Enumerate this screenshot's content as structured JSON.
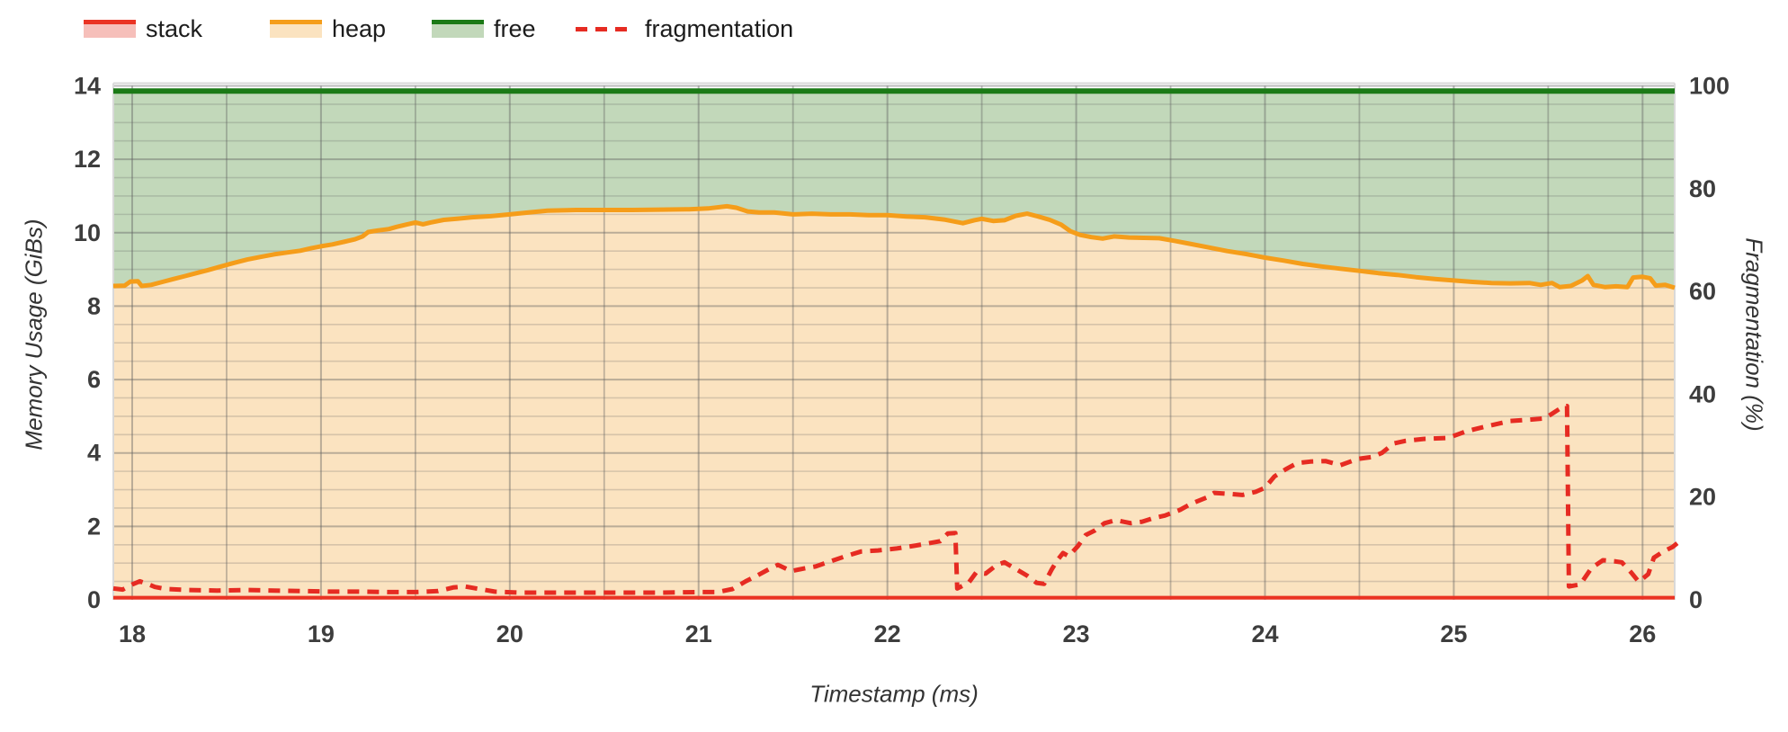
{
  "legend": {
    "items": [
      {
        "label": "stack",
        "series": "stack"
      },
      {
        "label": "heap",
        "series": "heap"
      },
      {
        "label": "free",
        "series": "free"
      },
      {
        "label": "fragmentation",
        "series": "fragmentation"
      }
    ]
  },
  "axes": {
    "x": {
      "title": "Timestamp (ms)",
      "ticks": [
        18,
        19,
        20,
        21,
        22,
        23,
        24,
        25,
        26
      ],
      "min": 17.9,
      "max": 26.17
    },
    "y_left": {
      "title": "Memory Usage (GiBs)",
      "ticks": [
        0,
        2,
        4,
        6,
        8,
        10,
        12,
        14
      ],
      "min": 0,
      "max": 14
    },
    "y_right": {
      "title": "Fragmentation (%)",
      "ticks": [
        0,
        20,
        40,
        60,
        80,
        100
      ],
      "min": 0,
      "max": 100
    }
  },
  "colors": {
    "background": "#ffffff",
    "stack_line": "#ea3323",
    "stack_fill": "#f6bfba",
    "heap_line": "#f59d1a",
    "heap_fill": "#fbe3c0",
    "free_line": "#1b7a16",
    "free_fill": "#c2d8ba",
    "fragmentation_line": "#e62b22",
    "grid_major": "rgba(95,95,95,0.42)",
    "grid_minor": "rgba(95,95,95,0.24)",
    "grid_vertical": "rgba(95,95,95,0.38)",
    "plot_border": "#d9d9d9",
    "tick_text": "#3d3d3d"
  },
  "chart_data": {
    "type": "area",
    "title": "",
    "xlabel": "Timestamp (ms)",
    "ylabel_left": "Memory Usage (GiBs)",
    "ylabel_right": "Fragmentation (%)",
    "x_range": [
      17.9,
      26.17
    ],
    "ylim_left": [
      0,
      14
    ],
    "ylim_right": [
      0,
      100
    ],
    "grid": {
      "x_minor_step": 0.5,
      "y_left_minor_step": 0.5,
      "grid_on": true,
      "legend_position": "top-left"
    },
    "series": [
      {
        "name": "free",
        "axis": "left",
        "style": "area",
        "width": 6,
        "points": [
          [
            17.9,
            13.86
          ],
          [
            26.17,
            13.86
          ]
        ]
      },
      {
        "name": "heap",
        "axis": "left",
        "style": "area",
        "width": 5,
        "points": [
          [
            17.9,
            8.55
          ],
          [
            17.96,
            8.56
          ],
          [
            17.99,
            8.67
          ],
          [
            18.03,
            8.68
          ],
          [
            18.05,
            8.55
          ],
          [
            18.1,
            8.58
          ],
          [
            18.16,
            8.66
          ],
          [
            18.22,
            8.74
          ],
          [
            18.28,
            8.82
          ],
          [
            18.34,
            8.9
          ],
          [
            18.4,
            8.98
          ],
          [
            18.47,
            9.08
          ],
          [
            18.54,
            9.18
          ],
          [
            18.61,
            9.27
          ],
          [
            18.68,
            9.34
          ],
          [
            18.75,
            9.41
          ],
          [
            18.82,
            9.46
          ],
          [
            18.89,
            9.51
          ],
          [
            18.95,
            9.58
          ],
          [
            19.0,
            9.63
          ],
          [
            19.06,
            9.68
          ],
          [
            19.12,
            9.75
          ],
          [
            19.18,
            9.82
          ],
          [
            19.22,
            9.9
          ],
          [
            19.25,
            10.02
          ],
          [
            19.3,
            10.06
          ],
          [
            19.36,
            10.1
          ],
          [
            19.4,
            10.16
          ],
          [
            19.45,
            10.22
          ],
          [
            19.5,
            10.28
          ],
          [
            19.54,
            10.23
          ],
          [
            19.58,
            10.28
          ],
          [
            19.65,
            10.35
          ],
          [
            19.72,
            10.38
          ],
          [
            19.8,
            10.42
          ],
          [
            19.9,
            10.45
          ],
          [
            20.0,
            10.5
          ],
          [
            20.1,
            10.55
          ],
          [
            20.2,
            10.6
          ],
          [
            20.35,
            10.62
          ],
          [
            20.5,
            10.62
          ],
          [
            20.65,
            10.62
          ],
          [
            20.8,
            10.63
          ],
          [
            20.95,
            10.64
          ],
          [
            21.05,
            10.66
          ],
          [
            21.15,
            10.72
          ],
          [
            21.2,
            10.68
          ],
          [
            21.26,
            10.58
          ],
          [
            21.32,
            10.55
          ],
          [
            21.4,
            10.55
          ],
          [
            21.5,
            10.5
          ],
          [
            21.6,
            10.52
          ],
          [
            21.7,
            10.5
          ],
          [
            21.8,
            10.5
          ],
          [
            21.9,
            10.48
          ],
          [
            22.0,
            10.48
          ],
          [
            22.1,
            10.44
          ],
          [
            22.2,
            10.42
          ],
          [
            22.3,
            10.36
          ],
          [
            22.4,
            10.26
          ],
          [
            22.46,
            10.34
          ],
          [
            22.5,
            10.38
          ],
          [
            22.56,
            10.32
          ],
          [
            22.62,
            10.34
          ],
          [
            22.68,
            10.46
          ],
          [
            22.74,
            10.52
          ],
          [
            22.8,
            10.44
          ],
          [
            22.86,
            10.35
          ],
          [
            22.92,
            10.22
          ],
          [
            22.97,
            10.04
          ],
          [
            23.02,
            9.94
          ],
          [
            23.08,
            9.88
          ],
          [
            23.14,
            9.84
          ],
          [
            23.2,
            9.9
          ],
          [
            23.28,
            9.87
          ],
          [
            23.36,
            9.86
          ],
          [
            23.44,
            9.85
          ],
          [
            23.52,
            9.78
          ],
          [
            23.6,
            9.7
          ],
          [
            23.7,
            9.6
          ],
          [
            23.8,
            9.5
          ],
          [
            23.9,
            9.42
          ],
          [
            24.0,
            9.32
          ],
          [
            24.1,
            9.24
          ],
          [
            24.2,
            9.15
          ],
          [
            24.3,
            9.08
          ],
          [
            24.4,
            9.02
          ],
          [
            24.5,
            8.96
          ],
          [
            24.6,
            8.9
          ],
          [
            24.7,
            8.85
          ],
          [
            24.8,
            8.79
          ],
          [
            24.9,
            8.74
          ],
          [
            25.0,
            8.7
          ],
          [
            25.1,
            8.66
          ],
          [
            25.2,
            8.63
          ],
          [
            25.3,
            8.62
          ],
          [
            25.4,
            8.63
          ],
          [
            25.46,
            8.58
          ],
          [
            25.52,
            8.63
          ],
          [
            25.56,
            8.52
          ],
          [
            25.62,
            8.55
          ],
          [
            25.68,
            8.7
          ],
          [
            25.71,
            8.82
          ],
          [
            25.74,
            8.58
          ],
          [
            25.8,
            8.52
          ],
          [
            25.86,
            8.54
          ],
          [
            25.92,
            8.52
          ],
          [
            25.95,
            8.78
          ],
          [
            26.0,
            8.8
          ],
          [
            26.04,
            8.76
          ],
          [
            26.07,
            8.56
          ],
          [
            26.12,
            8.58
          ],
          [
            26.17,
            8.5
          ]
        ]
      },
      {
        "name": "stack",
        "axis": "left",
        "style": "area",
        "width": 4,
        "points": [
          [
            17.9,
            0.06
          ],
          [
            26.17,
            0.06
          ]
        ]
      },
      {
        "name": "fragmentation",
        "axis": "right",
        "style": "dashed-line",
        "width": 5,
        "dash": "13 9",
        "points": [
          [
            17.9,
            2.2
          ],
          [
            17.95,
            2.0
          ],
          [
            18.0,
            3.0
          ],
          [
            18.04,
            3.6
          ],
          [
            18.08,
            3.1
          ],
          [
            18.12,
            2.5
          ],
          [
            18.18,
            2.1
          ],
          [
            18.3,
            1.9
          ],
          [
            18.45,
            1.8
          ],
          [
            18.6,
            1.9
          ],
          [
            18.75,
            1.8
          ],
          [
            18.9,
            1.7
          ],
          [
            19.05,
            1.6
          ],
          [
            19.2,
            1.6
          ],
          [
            19.35,
            1.5
          ],
          [
            19.5,
            1.5
          ],
          [
            19.62,
            1.7
          ],
          [
            19.7,
            2.4
          ],
          [
            19.76,
            2.6
          ],
          [
            19.84,
            2.1
          ],
          [
            19.92,
            1.6
          ],
          [
            20.05,
            1.4
          ],
          [
            20.2,
            1.4
          ],
          [
            20.4,
            1.4
          ],
          [
            20.6,
            1.4
          ],
          [
            20.8,
            1.4
          ],
          [
            21.0,
            1.5
          ],
          [
            21.1,
            1.5
          ],
          [
            21.18,
            2.1
          ],
          [
            21.25,
            3.6
          ],
          [
            21.31,
            4.7
          ],
          [
            21.38,
            6.1
          ],
          [
            21.42,
            6.8
          ],
          [
            21.49,
            5.6
          ],
          [
            21.56,
            6.1
          ],
          [
            21.62,
            6.5
          ],
          [
            21.7,
            7.5
          ],
          [
            21.78,
            8.5
          ],
          [
            21.86,
            9.4
          ],
          [
            21.95,
            9.6
          ],
          [
            22.05,
            10.0
          ],
          [
            22.14,
            10.5
          ],
          [
            22.22,
            11.0
          ],
          [
            22.28,
            11.4
          ],
          [
            22.32,
            12.9
          ],
          [
            22.36,
            13.0
          ],
          [
            22.37,
            2.2
          ],
          [
            22.43,
            3.3
          ],
          [
            22.47,
            5.3
          ],
          [
            22.52,
            5.1
          ],
          [
            22.58,
            6.8
          ],
          [
            22.62,
            7.3
          ],
          [
            22.68,
            6.0
          ],
          [
            22.74,
            4.7
          ],
          [
            22.79,
            3.3
          ],
          [
            22.83,
            3.1
          ],
          [
            22.87,
            5.9
          ],
          [
            22.9,
            7.7
          ],
          [
            22.93,
            9.1
          ],
          [
            22.96,
            8.5
          ],
          [
            23.01,
            10.5
          ],
          [
            23.05,
            12.6
          ],
          [
            23.1,
            13.5
          ],
          [
            23.15,
            14.9
          ],
          [
            23.21,
            15.5
          ],
          [
            23.29,
            14.9
          ],
          [
            23.35,
            15.2
          ],
          [
            23.41,
            15.9
          ],
          [
            23.47,
            16.4
          ],
          [
            23.55,
            17.5
          ],
          [
            23.61,
            18.7
          ],
          [
            23.69,
            19.9
          ],
          [
            23.73,
            20.8
          ],
          [
            23.82,
            20.6
          ],
          [
            23.88,
            20.4
          ],
          [
            23.95,
            21.0
          ],
          [
            24.0,
            21.8
          ],
          [
            24.05,
            24.0
          ],
          [
            24.11,
            25.4
          ],
          [
            24.17,
            26.6
          ],
          [
            24.24,
            26.9
          ],
          [
            24.32,
            27.0
          ],
          [
            24.4,
            26.2
          ],
          [
            24.49,
            27.4
          ],
          [
            24.57,
            27.8
          ],
          [
            24.62,
            28.6
          ],
          [
            24.68,
            30.4
          ],
          [
            24.74,
            30.9
          ],
          [
            24.84,
            31.3
          ],
          [
            24.97,
            31.5
          ],
          [
            25.06,
            32.7
          ],
          [
            25.11,
            33.2
          ],
          [
            25.19,
            33.9
          ],
          [
            25.3,
            34.8
          ],
          [
            25.38,
            35.0
          ],
          [
            25.48,
            35.3
          ],
          [
            25.52,
            36.2
          ],
          [
            25.57,
            37.4
          ],
          [
            25.6,
            37.7
          ],
          [
            25.61,
            2.6
          ],
          [
            25.67,
            3.0
          ],
          [
            25.73,
            6.2
          ],
          [
            25.79,
            7.7
          ],
          [
            25.85,
            7.5
          ],
          [
            25.89,
            7.3
          ],
          [
            25.94,
            5.3
          ],
          [
            25.98,
            3.5
          ],
          [
            26.03,
            5.0
          ],
          [
            26.06,
            8.2
          ],
          [
            26.11,
            9.4
          ],
          [
            26.16,
            10.3
          ],
          [
            26.2,
            11.5
          ]
        ]
      }
    ]
  }
}
